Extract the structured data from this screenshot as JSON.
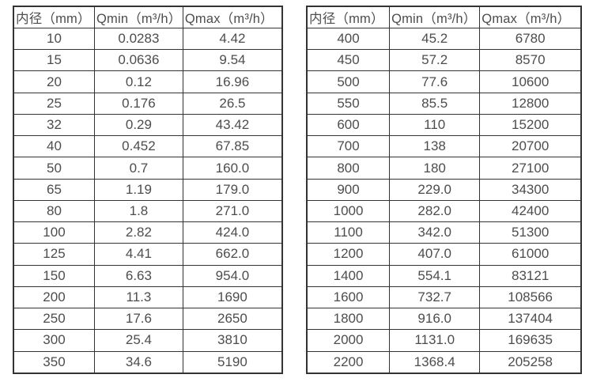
{
  "styles": {
    "text_color": "#4d4d4d",
    "border_color": "#333333",
    "background": "#ffffff"
  },
  "chart_data": [
    {
      "type": "table",
      "title": "",
      "columns": [
        "内径（mm）",
        "Qmin（m³/h）",
        "Qmax（m³/h）"
      ],
      "rows": [
        [
          "10",
          "0.0283",
          "4.42"
        ],
        [
          "15",
          "0.0636",
          "9.54"
        ],
        [
          "20",
          "0.12",
          "16.96"
        ],
        [
          "25",
          "0.176",
          "26.5"
        ],
        [
          "32",
          "0.29",
          "43.42"
        ],
        [
          "40",
          "0.452",
          "67.85"
        ],
        [
          "50",
          "0.7",
          "160.0"
        ],
        [
          "65",
          "1.19",
          "179.0"
        ],
        [
          "80",
          "1.8",
          "271.0"
        ],
        [
          "100",
          "2.82",
          "424.0"
        ],
        [
          "125",
          "4.41",
          "662.0"
        ],
        [
          "150",
          "6.63",
          "954.0"
        ],
        [
          "200",
          "11.3",
          "1690"
        ],
        [
          "250",
          "17.6",
          "2650"
        ],
        [
          "300",
          "25.4",
          "3810"
        ],
        [
          "350",
          "34.6",
          "5190"
        ]
      ]
    },
    {
      "type": "table",
      "title": "",
      "columns": [
        "内径（mm）",
        "Qmin（m³/h）",
        "Qmax（m³/h）"
      ],
      "rows": [
        [
          "400",
          "45.2",
          "6780"
        ],
        [
          "450",
          "57.2",
          "8570"
        ],
        [
          "500",
          "77.6",
          "10600"
        ],
        [
          "550",
          "85.5",
          "12800"
        ],
        [
          "600",
          "110",
          "15200"
        ],
        [
          "700",
          "138",
          "20700"
        ],
        [
          "800",
          "180",
          "27100"
        ],
        [
          "900",
          "229.0",
          "34300"
        ],
        [
          "1000",
          "282.0",
          "42400"
        ],
        [
          "1100",
          "342.0",
          "51300"
        ],
        [
          "1200",
          "407.0",
          "61000"
        ],
        [
          "1400",
          "554.1",
          "83121"
        ],
        [
          "1600",
          "732.7",
          "108566"
        ],
        [
          "1800",
          "916.0",
          "137404"
        ],
        [
          "2000",
          "1131.0",
          "169635"
        ],
        [
          "2200",
          "1368.4",
          "205258"
        ]
      ]
    }
  ]
}
